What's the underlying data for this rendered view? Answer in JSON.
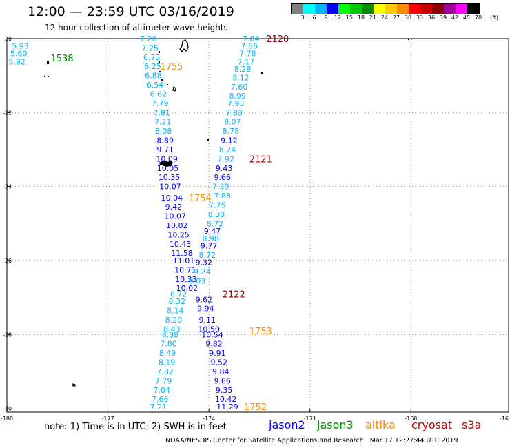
{
  "title": "12:00 — 23:59 UTC 03/16/2019",
  "subtitle": "12 hour collection of altimeter wave heights",
  "colorbar": {
    "colors": [
      "#808080",
      "#00ffff",
      "#00b4ff",
      "#0000ff",
      "#00ff00",
      "#00c800",
      "#008c00",
      "#ffff00",
      "#ffc800",
      "#ff8c00",
      "#ff0000",
      "#c80000",
      "#8c0000",
      "#a000a0",
      "#ff00ff",
      "#000000"
    ],
    "labels": [
      "3",
      "6",
      "9",
      "12",
      "15",
      "18",
      "21",
      "24",
      "27",
      "30",
      "33",
      "36",
      "39",
      "42",
      "45",
      "70",
      "(ft)"
    ]
  },
  "axes": {
    "lat_labels": [
      "-20",
      "-22",
      "-24",
      "-26",
      "-28",
      "-30"
    ],
    "lon_labels": [
      "-180",
      "-177",
      "-174",
      "-171",
      "-168",
      "-16"
    ]
  },
  "pass_times": [
    {
      "text": "1538",
      "color": "#008c00",
      "lon": -178.7,
      "lat": -20.52
    },
    {
      "text": "1755",
      "color": "#ff8c00",
      "lon": -175.45,
      "lat": -20.75
    },
    {
      "text": "2120",
      "color": "#8c0000",
      "lon": -172.3,
      "lat": -20.0
    },
    {
      "text": "2121",
      "color": "#8c0000",
      "lon": -172.8,
      "lat": -23.25
    },
    {
      "text": "1754",
      "color": "#ff8c00",
      "lon": -174.6,
      "lat": -24.3
    },
    {
      "text": "2122",
      "color": "#8c0000",
      "lon": -173.6,
      "lat": -26.9
    },
    {
      "text": "1753",
      "color": "#ff8c00",
      "lon": -172.8,
      "lat": -27.9
    },
    {
      "text": "1752",
      "color": "#ff8c00",
      "lon": -172.96,
      "lat": -29.95
    }
  ],
  "readings": [
    {
      "text": "5.93",
      "color": "#00b4ff",
      "lon": -179.6,
      "lat": -20.2
    },
    {
      "text": "5.60",
      "color": "#00b4ff",
      "lon": -179.65,
      "lat": -20.4
    },
    {
      "text": "5.92",
      "color": "#00b4ff",
      "lon": -179.7,
      "lat": -20.62
    },
    {
      "text": "7.26",
      "color": "#00b4ff",
      "lon": -175.8,
      "lat": -20.0
    },
    {
      "text": "7.25",
      "color": "#00b4ff",
      "lon": -175.75,
      "lat": -20.25
    },
    {
      "text": "6.73",
      "color": "#00b4ff",
      "lon": -175.7,
      "lat": -20.5
    },
    {
      "text": "6.25",
      "color": "#00b4ff",
      "lon": -175.67,
      "lat": -20.75
    },
    {
      "text": "6.88",
      "color": "#00b4ff",
      "lon": -175.65,
      "lat": -21.0
    },
    {
      "text": "6.54",
      "color": "#00b4ff",
      "lon": -175.6,
      "lat": -21.25
    },
    {
      "text": "6.62",
      "color": "#00b4ff",
      "lon": -175.5,
      "lat": -21.5
    },
    {
      "text": "7.79",
      "color": "#00b4ff",
      "lon": -175.45,
      "lat": -21.75
    },
    {
      "text": "7.81",
      "color": "#00b4ff",
      "lon": -175.4,
      "lat": -22.0
    },
    {
      "text": "7.21",
      "color": "#00b4ff",
      "lon": -175.37,
      "lat": -22.25
    },
    {
      "text": "8.08",
      "color": "#00b4ff",
      "lon": -175.35,
      "lat": -22.5
    },
    {
      "text": "8.89",
      "color": "#0000ff",
      "lon": -175.3,
      "lat": -22.75
    },
    {
      "text": "9.71",
      "color": "#0000ff",
      "lon": -175.3,
      "lat": -23.0
    },
    {
      "text": "10.09",
      "color": "#0000ff",
      "lon": -175.25,
      "lat": -23.25
    },
    {
      "text": "10.05",
      "color": "#0000ff",
      "lon": -175.22,
      "lat": -23.5
    },
    {
      "text": "10.35",
      "color": "#0000ff",
      "lon": -175.18,
      "lat": -23.75
    },
    {
      "text": "10.07",
      "color": "#0000ff",
      "lon": -175.15,
      "lat": -24.0
    },
    {
      "text": "10.04",
      "color": "#0000ff",
      "lon": -175.1,
      "lat": -24.3
    },
    {
      "text": "9.42",
      "color": "#0000ff",
      "lon": -175.05,
      "lat": -24.55
    },
    {
      "text": "10.07",
      "color": "#0000ff",
      "lon": -175.0,
      "lat": -24.8
    },
    {
      "text": "10.02",
      "color": "#0000ff",
      "lon": -174.95,
      "lat": -25.05
    },
    {
      "text": "10.25",
      "color": "#0000ff",
      "lon": -174.9,
      "lat": -25.3
    },
    {
      "text": "10.43",
      "color": "#0000ff",
      "lon": -174.85,
      "lat": -25.55
    },
    {
      "text": "11.58",
      "color": "#0000ff",
      "lon": -174.8,
      "lat": -25.8
    },
    {
      "text": "11.01",
      "color": "#0000ff",
      "lon": -174.75,
      "lat": -26.0
    },
    {
      "text": "10.71",
      "color": "#0000ff",
      "lon": -174.7,
      "lat": -26.25
    },
    {
      "text": "10.33",
      "color": "#0000ff",
      "lon": -174.68,
      "lat": -26.5
    },
    {
      "text": "10.02",
      "color": "#0000ff",
      "lon": -174.65,
      "lat": -26.75
    },
    {
      "text": "8.72",
      "color": "#00b4ff",
      "lon": -174.9,
      "lat": -26.9
    },
    {
      "text": "8.32",
      "color": "#00b4ff",
      "lon": -174.95,
      "lat": -27.1
    },
    {
      "text": "8.14",
      "color": "#00b4ff",
      "lon": -175.0,
      "lat": -27.35
    },
    {
      "text": "8.20",
      "color": "#00b4ff",
      "lon": -175.05,
      "lat": -27.6
    },
    {
      "text": "8.43",
      "color": "#00b4ff",
      "lon": -175.1,
      "lat": -27.85
    },
    {
      "text": "8.38",
      "color": "#00b4ff",
      "lon": -175.15,
      "lat": -28.0
    },
    {
      "text": "7.80",
      "color": "#00b4ff",
      "lon": -175.2,
      "lat": -28.25
    },
    {
      "text": "8.49",
      "color": "#00b4ff",
      "lon": -175.23,
      "lat": -28.5
    },
    {
      "text": "8.19",
      "color": "#00b4ff",
      "lon": -175.25,
      "lat": -28.75
    },
    {
      "text": "7.82",
      "color": "#00b4ff",
      "lon": -175.3,
      "lat": -29.0
    },
    {
      "text": "7.79",
      "color": "#00b4ff",
      "lon": -175.35,
      "lat": -29.25
    },
    {
      "text": "7.04",
      "color": "#00b4ff",
      "lon": -175.4,
      "lat": -29.5
    },
    {
      "text": "7.66",
      "color": "#00b4ff",
      "lon": -175.45,
      "lat": -29.75
    },
    {
      "text": "7.21",
      "color": "#00b4ff",
      "lon": -175.5,
      "lat": -29.95
    },
    {
      "text": "7.84",
      "color": "#00b4ff",
      "lon": -172.75,
      "lat": -20.0
    },
    {
      "text": "7.66",
      "color": "#00b4ff",
      "lon": -172.8,
      "lat": -20.2
    },
    {
      "text": "7.78",
      "color": "#00b4ff",
      "lon": -172.85,
      "lat": -20.4
    },
    {
      "text": "7.17",
      "color": "#00b4ff",
      "lon": -172.9,
      "lat": -20.62
    },
    {
      "text": "8.28",
      "color": "#00b4ff",
      "lon": -173.0,
      "lat": -20.82
    },
    {
      "text": "8.12",
      "color": "#00b4ff",
      "lon": -173.05,
      "lat": -21.05
    },
    {
      "text": "7.60",
      "color": "#00b4ff",
      "lon": -173.1,
      "lat": -21.3
    },
    {
      "text": "8.99",
      "color": "#00b4ff",
      "lon": -173.15,
      "lat": -21.55
    },
    {
      "text": "7.93",
      "color": "#00b4ff",
      "lon": -173.2,
      "lat": -21.75
    },
    {
      "text": "7.83",
      "color": "#00b4ff",
      "lon": -173.25,
      "lat": -22.0
    },
    {
      "text": "8.07",
      "color": "#00b4ff",
      "lon": -173.3,
      "lat": -22.25
    },
    {
      "text": "8.78",
      "color": "#00b4ff",
      "lon": -173.35,
      "lat": -22.5
    },
    {
      "text": "9.12",
      "color": "#0000ff",
      "lon": -173.4,
      "lat": -22.75
    },
    {
      "text": "8.24",
      "color": "#00b4ff",
      "lon": -173.45,
      "lat": -23.0
    },
    {
      "text": "7.92",
      "color": "#00b4ff",
      "lon": -173.5,
      "lat": -23.25
    },
    {
      "text": "9.43",
      "color": "#0000ff",
      "lon": -173.55,
      "lat": -23.5
    },
    {
      "text": "9.66",
      "color": "#0000ff",
      "lon": -173.6,
      "lat": -23.75
    },
    {
      "text": "7.39",
      "color": "#00b4ff",
      "lon": -173.65,
      "lat": -24.0
    },
    {
      "text": "7.88",
      "color": "#00b4ff",
      "lon": -173.6,
      "lat": -24.25
    },
    {
      "text": "7.75",
      "color": "#00b4ff",
      "lon": -173.75,
      "lat": -24.5
    },
    {
      "text": "8.30",
      "color": "#00b4ff",
      "lon": -173.78,
      "lat": -24.75
    },
    {
      "text": "8.72",
      "color": "#00b4ff",
      "lon": -173.82,
      "lat": -25.0
    },
    {
      "text": "9.47",
      "color": "#0000ff",
      "lon": -173.9,
      "lat": -25.2
    },
    {
      "text": "8.98",
      "color": "#00b4ff",
      "lon": -173.95,
      "lat": -25.4
    },
    {
      "text": "9.77",
      "color": "#0000ff",
      "lon": -174.0,
      "lat": -25.6
    },
    {
      "text": "8.72",
      "color": "#00b4ff",
      "lon": -174.05,
      "lat": -25.85
    },
    {
      "text": "9.32",
      "color": "#0000ff",
      "lon": -174.15,
      "lat": -26.05
    },
    {
      "text": "9.24",
      "color": "#00b4ff",
      "lon": -174.2,
      "lat": -26.3
    },
    {
      "text": "9.03",
      "color": "#00b4ff",
      "lon": -174.35,
      "lat": -26.55
    },
    {
      "text": "9.62",
      "color": "#0000ff",
      "lon": -174.15,
      "lat": -27.05
    },
    {
      "text": "9.94",
      "color": "#0000ff",
      "lon": -174.1,
      "lat": -27.3
    },
    {
      "text": "9.11",
      "color": "#0000ff",
      "lon": -174.05,
      "lat": -27.6
    },
    {
      "text": "10.50",
      "color": "#0000ff",
      "lon": -174.0,
      "lat": -27.85
    },
    {
      "text": "10.54",
      "color": "#0000ff",
      "lon": -173.9,
      "lat": -28.0
    },
    {
      "text": "9.82",
      "color": "#0000ff",
      "lon": -173.85,
      "lat": -28.25
    },
    {
      "text": "9.91",
      "color": "#0000ff",
      "lon": -173.75,
      "lat": -28.5
    },
    {
      "text": "9.52",
      "color": "#0000ff",
      "lon": -173.7,
      "lat": -28.75
    },
    {
      "text": "9.84",
      "color": "#0000ff",
      "lon": -173.65,
      "lat": -29.0
    },
    {
      "text": "9.66",
      "color": "#0000ff",
      "lon": -173.6,
      "lat": -29.25
    },
    {
      "text": "9.35",
      "color": "#0000ff",
      "lon": -173.55,
      "lat": -29.5
    },
    {
      "text": "10.42",
      "color": "#0000ff",
      "lon": -173.5,
      "lat": -29.75
    },
    {
      "text": "11.29",
      "color": "#0000ff",
      "lon": -173.45,
      "lat": -29.95
    }
  ],
  "legend": [
    {
      "name": "jason2",
      "color": "#0000ff"
    },
    {
      "name": "jason3",
      "color": "#008c00"
    },
    {
      "name": "altika",
      "color": "#ff8c00"
    },
    {
      "name": "cryosat",
      "color": "#c80000"
    },
    {
      "name": "s3a",
      "color": "#c80000"
    }
  ],
  "note": "note: 1) Time is in UTC; 2) SWH is in feet",
  "credit": "NOAA/NESDIS Center for Satellite Applications and Research   Mar 17 12:27:44 UTC 2019"
}
